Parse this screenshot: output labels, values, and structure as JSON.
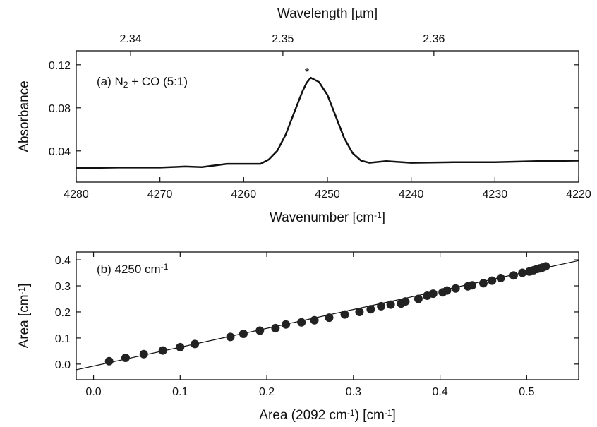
{
  "chart_data": [
    {
      "type": "line",
      "x": [
        4280,
        4275,
        4270,
        4267,
        4265,
        4262,
        4260,
        4258,
        4257,
        4256,
        4255,
        4254,
        4253,
        4252.5,
        4252,
        4251,
        4250,
        4249,
        4248,
        4247,
        4246,
        4245,
        4243,
        4240,
        4235,
        4230,
        4225,
        4220
      ],
      "values": [
        0.024,
        0.0245,
        0.0245,
        0.0255,
        0.025,
        0.028,
        0.028,
        0.028,
        0.032,
        0.04,
        0.055,
        0.075,
        0.095,
        0.103,
        0.108,
        0.104,
        0.092,
        0.072,
        0.052,
        0.038,
        0.031,
        0.029,
        0.0305,
        0.029,
        0.0295,
        0.0295,
        0.0305,
        0.031
      ],
      "color": "#111111",
      "xlim": [
        4280,
        4220
      ],
      "xticks": [
        4280,
        4270,
        4260,
        4250,
        4240,
        4230,
        4220
      ],
      "ylim": [
        0.011,
        0.133
      ],
      "yticks": [
        0.04,
        0.08,
        0.12
      ],
      "xlabel": [
        "Wavenumber [cm",
        {
          "text": "-1",
          "style": "sup"
        },
        "]"
      ],
      "ylabel": "Absorbance",
      "x2label": "Wavelength [µm]",
      "x2ticks": [
        2.34,
        2.35,
        2.36
      ],
      "annotations": [
        [
          "(a) N",
          {
            "text": "2",
            "style": "sub"
          },
          " + CO (5:1)"
        ],
        [
          "*"
        ]
      ]
    },
    {
      "type": "scatter",
      "x": [
        0.018,
        0.037,
        0.058,
        0.08,
        0.1,
        0.117,
        0.158,
        0.173,
        0.192,
        0.21,
        0.222,
        0.24,
        0.255,
        0.272,
        0.29,
        0.307,
        0.32,
        0.332,
        0.343,
        0.355,
        0.36,
        0.375,
        0.385,
        0.392,
        0.403,
        0.408,
        0.418,
        0.432,
        0.437,
        0.45,
        0.46,
        0.47,
        0.485,
        0.495,
        0.503,
        0.508,
        0.512,
        0.515,
        0.518,
        0.522
      ],
      "values": [
        0.011,
        0.024,
        0.038,
        0.052,
        0.065,
        0.077,
        0.104,
        0.116,
        0.128,
        0.138,
        0.152,
        0.16,
        0.168,
        0.178,
        0.19,
        0.2,
        0.21,
        0.222,
        0.228,
        0.232,
        0.24,
        0.25,
        0.262,
        0.27,
        0.275,
        0.282,
        0.29,
        0.298,
        0.302,
        0.31,
        0.32,
        0.33,
        0.34,
        0.35,
        0.355,
        0.36,
        0.365,
        0.367,
        0.37,
        0.375
      ],
      "color": "#222222",
      "fit": {
        "x": [
          -0.02,
          0.56
        ],
        "values": [
          -0.022,
          0.397
        ]
      },
      "xlim": [
        -0.02,
        0.56
      ],
      "xticks": [
        {
          "value": 0,
          "label": "0.0"
        },
        0.1,
        0.2,
        0.3,
        0.4,
        0.5
      ],
      "ylim": [
        -0.06,
        0.43
      ],
      "yticks": [
        {
          "value": 0,
          "label": "0.0"
        },
        0.1,
        0.2,
        0.3,
        0.4
      ],
      "xlabel": [
        "Area (2092 cm",
        {
          "text": "-1",
          "style": "sup"
        },
        ") [cm",
        {
          "text": "-1",
          "style": "sup"
        },
        "]"
      ],
      "ylabel": [
        "Area [cm",
        {
          "text": "-1",
          "style": "sup"
        },
        "]"
      ],
      "annotations": [
        [
          "(b) 4250 cm",
          {
            "text": "-1",
            "style": "sup"
          }
        ]
      ]
    }
  ]
}
